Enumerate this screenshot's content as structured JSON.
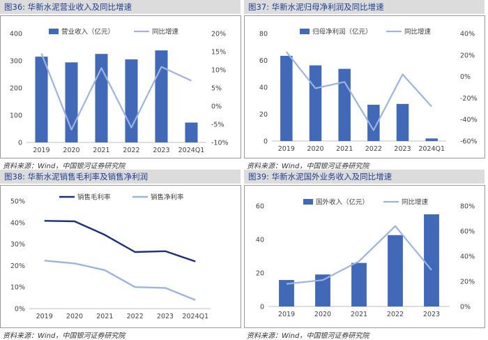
{
  "colors": {
    "bar": "#4169b8",
    "line": "#9db4e0",
    "dark": "#1b2f7e",
    "light": "#9db4e0"
  },
  "chart_data": [
    {
      "type": "bar",
      "title": "图36:  华新水泥营业收入及同比增速",
      "source": "资料来源：Wind，中国银河证券研究院",
      "categories": [
        "2019",
        "2020",
        "2021",
        "2022",
        "2023",
        "2024Q1"
      ],
      "series": [
        {
          "name": "营业收入（亿元）",
          "kind": "bar",
          "axis": "left",
          "values": [
            315,
            294,
            325,
            305,
            338,
            73
          ]
        },
        {
          "name": "同比增速",
          "kind": "line",
          "axis": "right",
          "values": [
            14.5,
            -6.5,
            10.5,
            -5.9,
            10.8,
            7.0
          ]
        }
      ],
      "y_left": {
        "min": 0,
        "max": 400,
        "step": 100,
        "ticks": [
          "0",
          "100",
          "200",
          "300",
          "400"
        ]
      },
      "y_right": {
        "min": -10,
        "max": 20,
        "step": 5,
        "ticks": [
          "-10%",
          "-5%",
          "0%",
          "5%",
          "10%",
          "15%",
          "20%"
        ]
      }
    },
    {
      "type": "bar",
      "title": "图37:  华新水泥归母净利润及同比增速",
      "source": "资料来源：Wind，中国银河证券研究院",
      "categories": [
        "2019",
        "2020",
        "2021",
        "2022",
        "2023",
        "2024Q1"
      ],
      "series": [
        {
          "name": "归母净利润（亿元）",
          "kind": "bar",
          "axis": "left",
          "values": [
            63.4,
            56.3,
            53.7,
            27.0,
            27.6,
            1.9
          ]
        },
        {
          "name": "同比增速",
          "kind": "line",
          "axis": "right",
          "values": [
            23,
            -11,
            -5,
            -50,
            2,
            -28
          ]
        }
      ],
      "y_left": {
        "min": 0,
        "max": 80,
        "step": 20,
        "ticks": [
          "0",
          "20",
          "40",
          "60",
          "80"
        ]
      },
      "y_right": {
        "min": -60,
        "max": 40,
        "step": 20,
        "ticks": [
          "-60%",
          "-40%",
          "-20%",
          "0%",
          "20%",
          "40%"
        ]
      }
    },
    {
      "type": "line",
      "title": "图38:  华新水泥销售毛利率及销售净利润",
      "source": "资料来源：Wind，中国银河证券研究院",
      "categories": [
        "2019",
        "2020",
        "2021",
        "2022",
        "2023",
        "2024Q1"
      ],
      "series": [
        {
          "name": "销售毛利率",
          "kind": "line",
          "axis": "left",
          "style": "dark",
          "values": [
            40.8,
            40.6,
            34.3,
            26.3,
            26.7,
            21.9
          ]
        },
        {
          "name": "销售净利率",
          "kind": "line",
          "axis": "left",
          "style": "light",
          "values": [
            22.3,
            21.0,
            17.9,
            10.0,
            9.6,
            4.0
          ]
        }
      ],
      "y_left": {
        "min": 0,
        "max": 50,
        "step": 10,
        "ticks": [
          "0%",
          "10%",
          "20%",
          "30%",
          "40%",
          "50%"
        ]
      }
    },
    {
      "type": "bar",
      "title": "图39:  华新水泥国外业务收入及同比增速",
      "source": "资料来源：Wind，中国银河证券研究院",
      "categories": [
        "2019",
        "2020",
        "2021",
        "2022",
        "2023"
      ],
      "series": [
        {
          "name": "国外收入（亿元）",
          "kind": "bar",
          "axis": "left",
          "values": [
            15.8,
            19.1,
            26.0,
            42.6,
            55.0
          ]
        },
        {
          "name": "同比增速",
          "kind": "line",
          "axis": "right",
          "values": [
            18,
            21,
            36,
            64,
            29
          ]
        }
      ],
      "y_left": {
        "min": 0,
        "max": 60,
        "step": 20,
        "ticks": [
          "0",
          "20",
          "40",
          "60"
        ]
      },
      "y_right": {
        "min": 0,
        "max": 80,
        "step": 20,
        "ticks": [
          "0%",
          "20%",
          "40%",
          "60%",
          "80%"
        ]
      }
    }
  ]
}
